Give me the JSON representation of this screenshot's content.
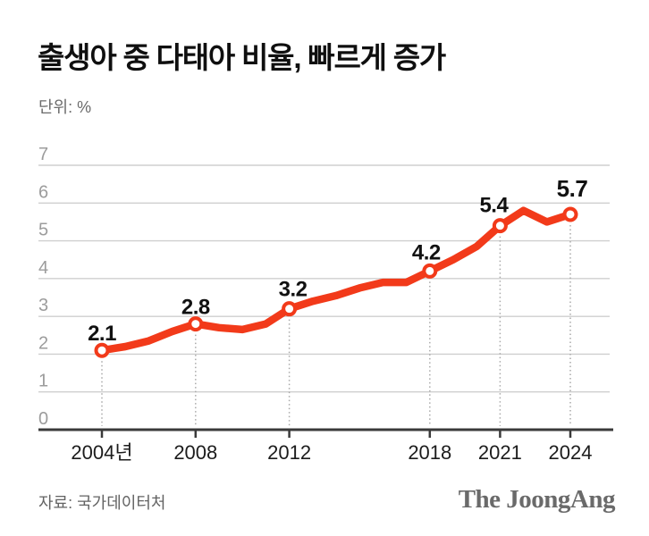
{
  "header": {
    "title": "출생아 중 다태아 비율, 빠르게 증가",
    "unit_label": "단위: %"
  },
  "chart_data": {
    "type": "line",
    "title": "출생아 중 다태아 비율, 빠르게 증가",
    "unit": "%",
    "series_name": "출생아 중 다태아 비율",
    "x": [
      2004,
      2005,
      2006,
      2007,
      2008,
      2009,
      2010,
      2011,
      2012,
      2013,
      2014,
      2015,
      2016,
      2017,
      2018,
      2019,
      2020,
      2021,
      2022,
      2023,
      2024
    ],
    "values": [
      2.1,
      2.2,
      2.35,
      2.6,
      2.8,
      2.7,
      2.65,
      2.8,
      3.2,
      3.4,
      3.55,
      3.75,
      3.9,
      3.9,
      4.2,
      4.5,
      4.85,
      5.4,
      5.8,
      5.5,
      5.7
    ],
    "ylim": [
      0,
      7
    ],
    "y_ticks": [
      0,
      1,
      2,
      3,
      4,
      5,
      6,
      7
    ],
    "x_ticks": [
      {
        "year": 2004,
        "label": "2004년"
      },
      {
        "year": 2008,
        "label": "2008"
      },
      {
        "year": 2012,
        "label": "2012"
      },
      {
        "year": 2018,
        "label": "2018"
      },
      {
        "year": 2021,
        "label": "2021"
      },
      {
        "year": 2024,
        "label": "2024"
      }
    ],
    "annotated_points": [
      {
        "year": 2004,
        "value": 2.1,
        "label": "2.1"
      },
      {
        "year": 2008,
        "value": 2.8,
        "label": "2.8"
      },
      {
        "year": 2012,
        "value": 3.2,
        "label": "3.2"
      },
      {
        "year": 2018,
        "value": 4.2,
        "label": "4.2"
      },
      {
        "year": 2021,
        "value": 5.4,
        "label": "5.4"
      },
      {
        "year": 2024,
        "value": 5.7,
        "label": "5.7"
      }
    ],
    "grid": true,
    "legend": false,
    "colors": {
      "line": "#f23a1a",
      "marker_fill": "#ffffff",
      "grid": "#cfcfcf",
      "axis": "#3a3a3a",
      "y_tick_label": "#9c9c9c",
      "x_tick_label": "#1c1c1c",
      "point_label": "#111111",
      "callout_dotted": "#a9a9a9"
    }
  },
  "footer": {
    "source": "자료: 국가데이터처",
    "logo": "The JoongAng"
  }
}
